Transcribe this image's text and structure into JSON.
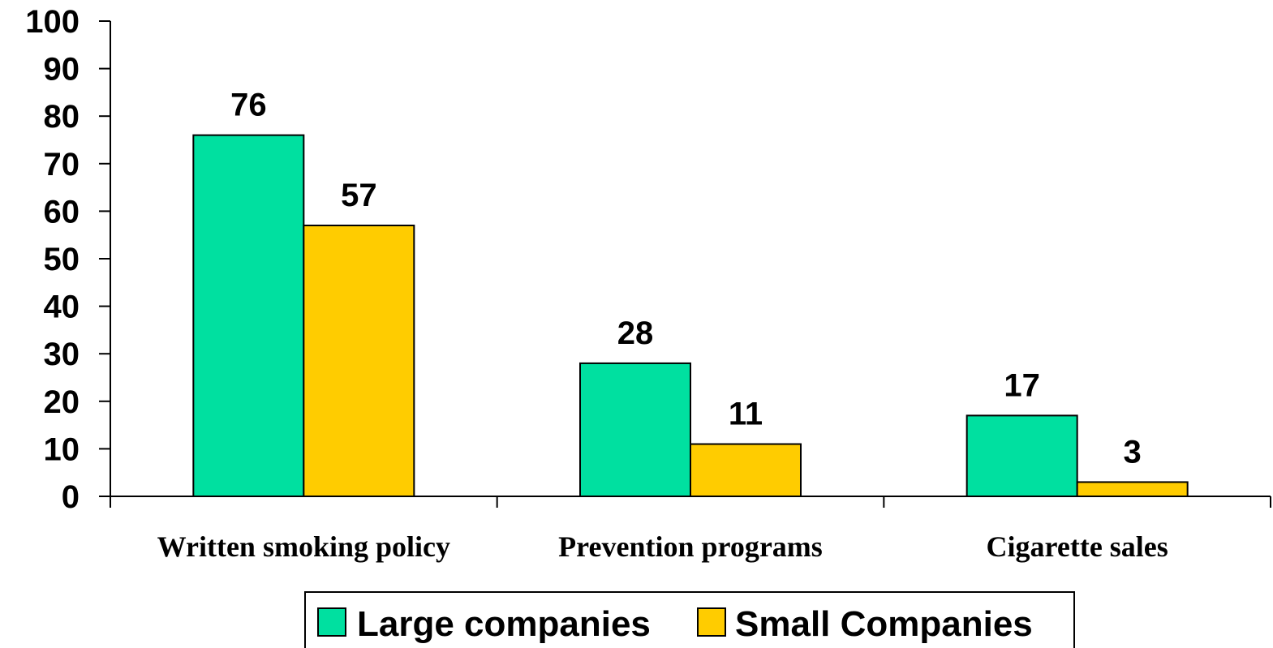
{
  "chart_data": {
    "type": "bar",
    "categories": [
      "Written smoking policy",
      "Prevention programs",
      "Cigarette sales"
    ],
    "series": [
      {
        "name": "Large companies",
        "values": [
          76,
          28,
          17
        ],
        "color": "#00E0A0"
      },
      {
        "name": "Small Companies",
        "values": [
          57,
          11,
          3
        ],
        "color": "#FFCC00"
      }
    ],
    "ylim": [
      0,
      100
    ],
    "yticks": [
      "0",
      "10",
      "20",
      "30",
      "40",
      "50",
      "60",
      "70",
      "80",
      "90",
      "100"
    ],
    "data_labels": [
      [
        "76",
        "28",
        "17"
      ],
      [
        "57",
        "11",
        "3"
      ]
    ],
    "grid": false,
    "legend_position": "bottom"
  }
}
